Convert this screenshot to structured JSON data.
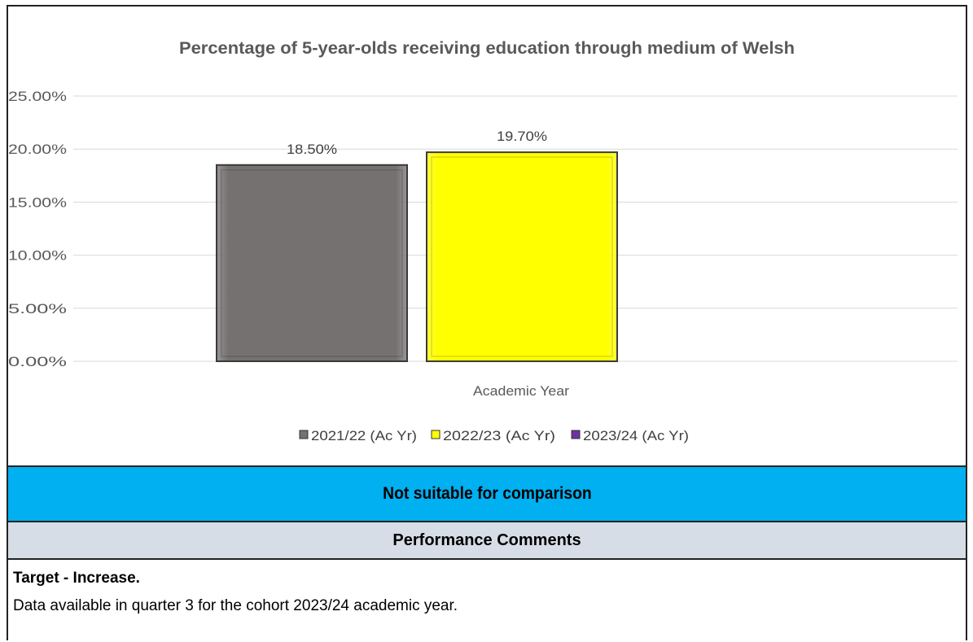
{
  "chart_data": {
    "type": "bar",
    "title": "Percentage of 5-year-olds receiving education through medium of Welsh",
    "xlabel": "Academic Year",
    "ylabel": "",
    "ylim": [
      0,
      25
    ],
    "y_ticks": [
      "0.00%",
      "5.00%",
      "10.00%",
      "15.00%",
      "20.00%",
      "25.00%"
    ],
    "y_tick_values": [
      0,
      5,
      10,
      15,
      20,
      25
    ],
    "grid": true,
    "legend_position": "bottom",
    "categories": [
      "Academic Year"
    ],
    "series": [
      {
        "name": "2021/22 (Ac Yr)",
        "values": [
          18.5
        ],
        "label": "18.50%",
        "color": "#767171"
      },
      {
        "name": "2022/23 (Ac Yr)",
        "values": [
          19.7
        ],
        "label": "19.70%",
        "color": "#ffff00"
      },
      {
        "name": "2023/24 (Ac Yr)",
        "values": [
          null
        ],
        "label": "",
        "color": "#7030a0"
      }
    ]
  },
  "comparison_banner": "Not suitable for comparison",
  "comments": {
    "header": "Performance Comments",
    "target": "Target - Increase.",
    "note": "Data available in quarter 3 for the cohort 2023/24 academic year."
  }
}
